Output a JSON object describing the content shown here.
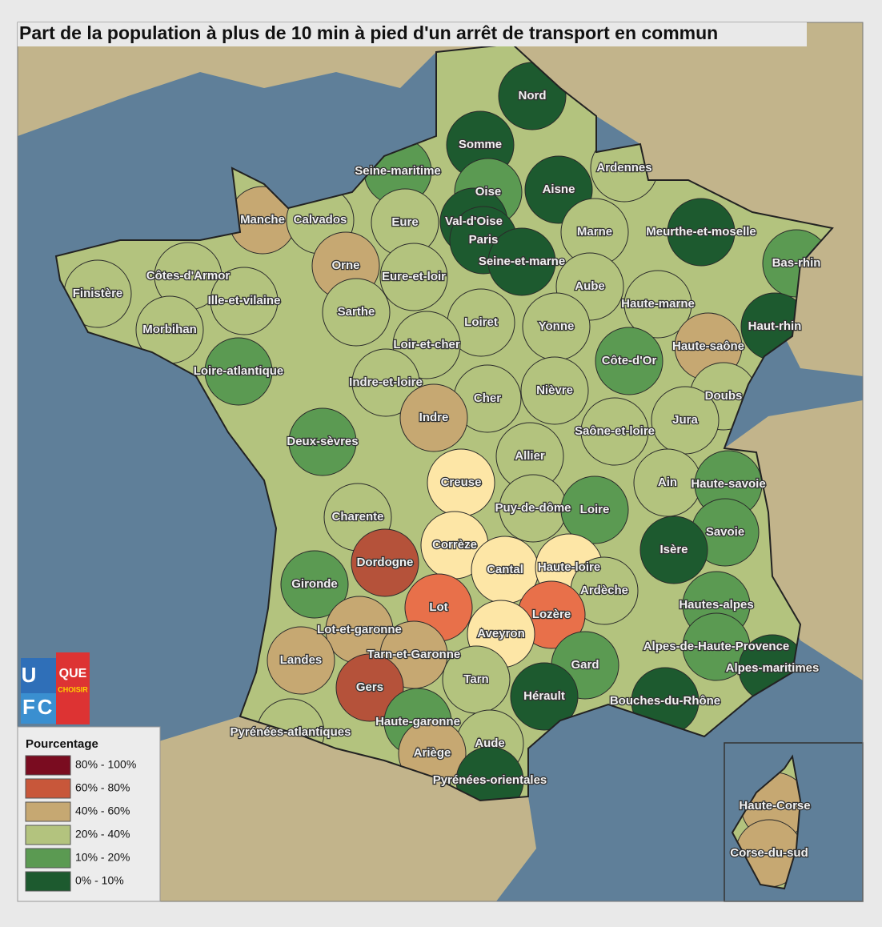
{
  "title": "Part de la population à plus de 10 min à pied d'un arrêt de transport en commun",
  "legend": {
    "title": "Pourcentage",
    "classes": [
      {
        "label": "80% - 100%",
        "color": "#7a0c20"
      },
      {
        "label": "60% - 80%",
        "color": "#c8573a"
      },
      {
        "label": "40% - 60%",
        "color": "#c6a872"
      },
      {
        "label": "20% - 40%",
        "color": "#b3c37e"
      },
      {
        "label": "10% - 20%",
        "color": "#5b9a52"
      },
      {
        "label": "0% - 10%",
        "color": "#1d5a2f"
      }
    ]
  },
  "logo": {
    "letters": [
      "U",
      "F",
      "C"
    ],
    "words": [
      "QUE",
      "CHOISIR"
    ]
  },
  "departments": [
    {
      "name": "Nord",
      "color": "#1d5a2f"
    },
    {
      "name": "Somme",
      "color": "#1d5a2f"
    },
    {
      "name": "Aisne",
      "color": "#1d5a2f"
    },
    {
      "name": "Oise",
      "color": "#5b9a52"
    },
    {
      "name": "Val-d'Oise",
      "color": "#1d5a2f"
    },
    {
      "name": "Paris",
      "color": "#1d5a2f"
    },
    {
      "name": "Seine-et-marne",
      "color": "#1d5a2f"
    },
    {
      "name": "Seine-maritime",
      "color": "#5b9a52"
    },
    {
      "name": "Ardennes",
      "color": "#b3c37e"
    },
    {
      "name": "Marne",
      "color": "#b3c37e"
    },
    {
      "name": "Meurthe-et-moselle",
      "color": "#1d5a2f"
    },
    {
      "name": "Bas-rhin",
      "color": "#5b9a52"
    },
    {
      "name": "Haut-rhin",
      "color": "#1d5a2f"
    },
    {
      "name": "Manche",
      "color": "#c6a872"
    },
    {
      "name": "Calvados",
      "color": "#b3c37e"
    },
    {
      "name": "Eure",
      "color": "#b3c37e"
    },
    {
      "name": "Orne",
      "color": "#c6a872"
    },
    {
      "name": "Eure-et-loir",
      "color": "#b3c37e"
    },
    {
      "name": "Côtes-d'Armor",
      "color": "#b3c37e"
    },
    {
      "name": "Finistère",
      "color": "#b3c37e"
    },
    {
      "name": "Ille-et-vilaine",
      "color": "#b3c37e"
    },
    {
      "name": "Morbihan",
      "color": "#b3c37e"
    },
    {
      "name": "Sarthe",
      "color": "#b3c37e"
    },
    {
      "name": "Loiret",
      "color": "#b3c37e"
    },
    {
      "name": "Aube",
      "color": "#b3c37e"
    },
    {
      "name": "Haute-marne",
      "color": "#b3c37e"
    },
    {
      "name": "Yonne",
      "color": "#b3c37e"
    },
    {
      "name": "Loir-et-cher",
      "color": "#b3c37e"
    },
    {
      "name": "Haute-saône",
      "color": "#c6a872"
    },
    {
      "name": "Côte-d'Or",
      "color": "#5b9a52"
    },
    {
      "name": "Loire-atlantique",
      "color": "#5b9a52"
    },
    {
      "name": "Indre-et-loire",
      "color": "#b3c37e"
    },
    {
      "name": "Cher",
      "color": "#b3c37e"
    },
    {
      "name": "Nièvre",
      "color": "#b3c37e"
    },
    {
      "name": "Doubs",
      "color": "#b3c37e"
    },
    {
      "name": "Indre",
      "color": "#c6a872"
    },
    {
      "name": "Jura",
      "color": "#b3c37e"
    },
    {
      "name": "Saône-et-loire",
      "color": "#b3c37e"
    },
    {
      "name": "Deux-sèvres",
      "color": "#5b9a52"
    },
    {
      "name": "Allier",
      "color": "#b3c37e"
    },
    {
      "name": "Creuse",
      "color": "#fde6a6"
    },
    {
      "name": "Ain",
      "color": "#b3c37e"
    },
    {
      "name": "Haute-savoie",
      "color": "#5b9a52"
    },
    {
      "name": "Puy-de-dôme",
      "color": "#b3c37e"
    },
    {
      "name": "Loire",
      "color": "#5b9a52"
    },
    {
      "name": "Charente",
      "color": "#b3c37e"
    },
    {
      "name": "Savoie",
      "color": "#5b9a52"
    },
    {
      "name": "Corrèze",
      "color": "#fde6a6"
    },
    {
      "name": "Isère",
      "color": "#1d5a2f"
    },
    {
      "name": "Dordogne",
      "color": "#b5523a"
    },
    {
      "name": "Cantal",
      "color": "#fde6a6"
    },
    {
      "name": "Haute-loire",
      "color": "#fde6a6"
    },
    {
      "name": "Gironde",
      "color": "#5b9a52"
    },
    {
      "name": "Ardèche",
      "color": "#b3c37e"
    },
    {
      "name": "Lot",
      "color": "#e8704a"
    },
    {
      "name": "Lozère",
      "color": "#e8704a"
    },
    {
      "name": "Hautes-alpes",
      "color": "#5b9a52"
    },
    {
      "name": "Aveyron",
      "color": "#fde6a6"
    },
    {
      "name": "Lot-et-garonne",
      "color": "#c6a872"
    },
    {
      "name": "Landes",
      "color": "#c6a872"
    },
    {
      "name": "Tarn-et-Garonne",
      "color": "#c6a872"
    },
    {
      "name": "Gard",
      "color": "#5b9a52"
    },
    {
      "name": "Alpes-de-Haute-Provence",
      "color": "#5b9a52"
    },
    {
      "name": "Alpes-maritimes",
      "color": "#1d5a2f"
    },
    {
      "name": "Tarn",
      "color": "#b3c37e"
    },
    {
      "name": "Gers",
      "color": "#b5523a"
    },
    {
      "name": "Hérault",
      "color": "#1d5a2f"
    },
    {
      "name": "Bouches-du-Rhône",
      "color": "#1d5a2f"
    },
    {
      "name": "Haute-garonne",
      "color": "#5b9a52"
    },
    {
      "name": "Pyrénées-atlantiques",
      "color": "#b3c37e"
    },
    {
      "name": "Aude",
      "color": "#b3c37e"
    },
    {
      "name": "Ariège",
      "color": "#c6a872"
    },
    {
      "name": "Pyrénées-orientales",
      "color": "#1d5a2f"
    },
    {
      "name": "Haute-Corse",
      "color": "#c6a872"
    },
    {
      "name": "Corse-du-sud",
      "color": "#c6a872"
    }
  ]
}
